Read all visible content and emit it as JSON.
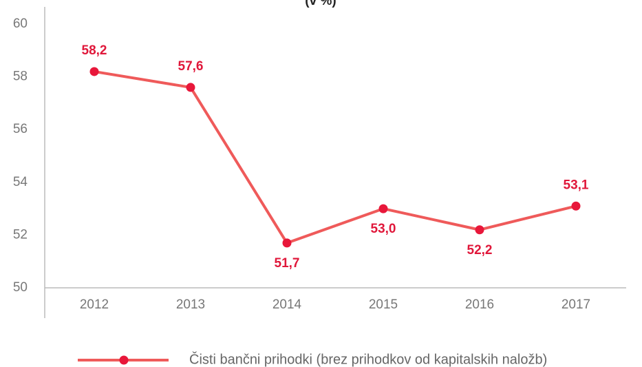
{
  "chart_data": {
    "type": "line",
    "title": "(v %)",
    "categories": [
      "2012",
      "2013",
      "2014",
      "2015",
      "2016",
      "2017"
    ],
    "series": [
      {
        "name": "Čisti bančni prihodki (brez prihodkov od kapitalskih naložb)",
        "color": "#ef5a5a",
        "marker_color": "#e8173a",
        "values": [
          58.2,
          57.6,
          51.7,
          53.0,
          52.2,
          53.1
        ],
        "value_labels": [
          "58,2",
          "57,6",
          "51,7",
          "53,0",
          "52,2",
          "53,1"
        ]
      }
    ],
    "ylim": [
      50,
      60
    ],
    "yticks": [
      50,
      52,
      54,
      56,
      58,
      60
    ],
    "grid": false
  }
}
